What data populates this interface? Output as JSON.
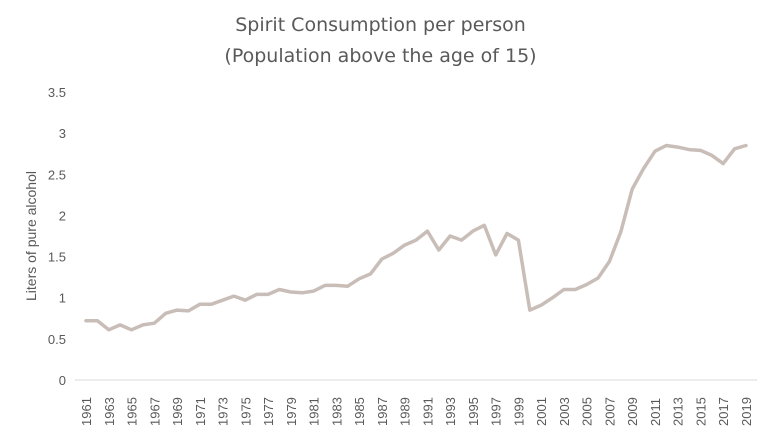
{
  "chart_data": {
    "type": "line",
    "title": [
      "Spirit Consumption per person",
      "(Population above the age of 15)"
    ],
    "xlabel": "",
    "ylabel": "Liters of pure alcohol",
    "ylim": [
      0,
      3.5
    ],
    "yticks": [
      "0",
      "0.5",
      "1",
      "1.5",
      "2",
      "2.5",
      "3",
      "3.5"
    ],
    "grid": false,
    "legend": "none",
    "series_color": "#c9bdb8",
    "x": [
      1961,
      1962,
      1963,
      1964,
      1965,
      1966,
      1967,
      1968,
      1969,
      1970,
      1971,
      1972,
      1973,
      1974,
      1975,
      1976,
      1977,
      1978,
      1979,
      1980,
      1981,
      1982,
      1983,
      1984,
      1985,
      1986,
      1987,
      1988,
      1989,
      1990,
      1991,
      1992,
      1993,
      1994,
      1995,
      1996,
      1997,
      1998,
      1999,
      2000,
      2001,
      2002,
      2003,
      2004,
      2005,
      2006,
      2007,
      2008,
      2009,
      2010,
      2011,
      2012,
      2013,
      2014,
      2015,
      2016,
      2017,
      2018,
      2019
    ],
    "xtick_labels": [
      "1961",
      "1963",
      "1965",
      "1967",
      "1969",
      "1971",
      "1973",
      "1975",
      "1977",
      "1979",
      "1981",
      "1983",
      "1985",
      "1987",
      "1989",
      "1991",
      "1993",
      "1995",
      "1997",
      "1999",
      "2001",
      "2003",
      "2005",
      "2007",
      "2009",
      "2011",
      "2013",
      "2015",
      "2017",
      "2019"
    ],
    "series": [
      {
        "values": [
          0.72,
          0.72,
          0.61,
          0.67,
          0.61,
          0.67,
          0.69,
          0.81,
          0.85,
          0.84,
          0.92,
          0.92,
          0.97,
          1.02,
          0.97,
          1.04,
          1.04,
          1.1,
          1.07,
          1.06,
          1.08,
          1.15,
          1.15,
          1.14,
          1.23,
          1.29,
          1.47,
          1.54,
          1.64,
          1.7,
          1.81,
          1.58,
          1.75,
          1.7,
          1.81,
          1.88,
          1.52,
          1.78,
          1.7,
          0.85,
          0.91,
          1.0,
          1.1,
          1.1,
          1.16,
          1.24,
          1.44,
          1.8,
          2.32,
          2.57,
          2.78,
          2.85,
          2.83,
          2.8,
          2.79,
          2.73,
          2.63,
          2.81,
          2.85
        ]
      }
    ]
  }
}
